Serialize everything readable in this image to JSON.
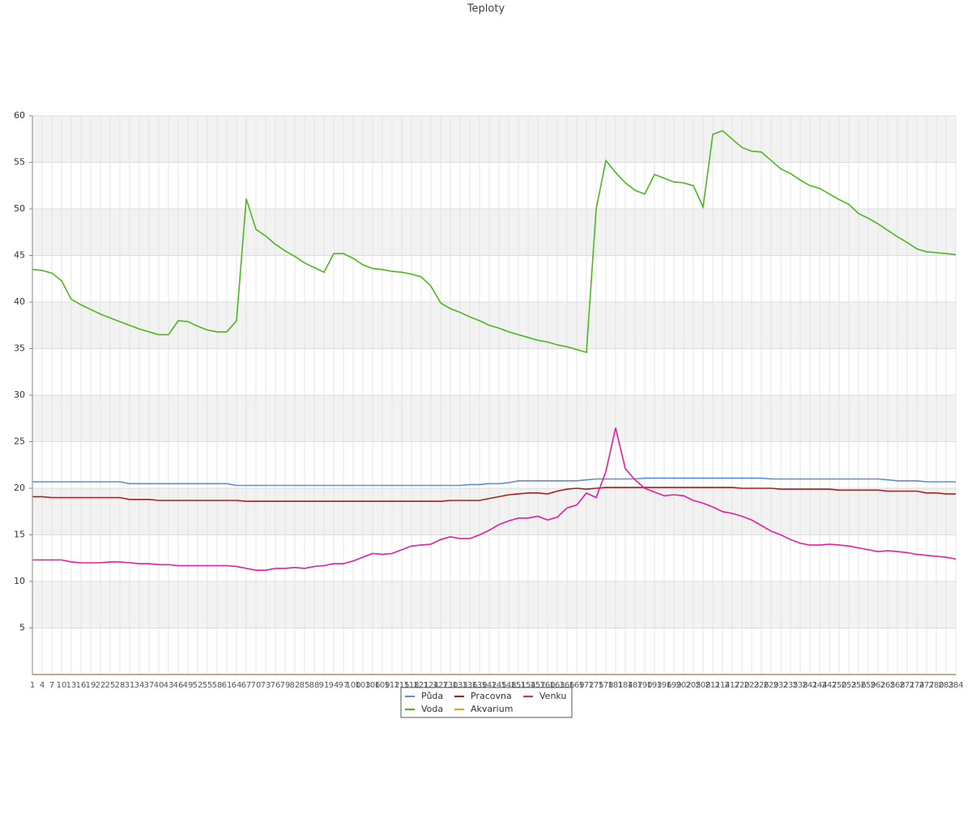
{
  "chart_data": {
    "type": "line",
    "title": "Teploty",
    "categories": [
      "1",
      "4",
      "7",
      "10",
      "13",
      "16",
      "19",
      "22",
      "25",
      "28",
      "31",
      "34",
      "37",
      "40",
      "43",
      "46",
      "49",
      "52",
      "55",
      "58",
      "61",
      "64",
      "67",
      "70",
      "73",
      "76",
      "79",
      "82",
      "85",
      "88",
      "91",
      "94",
      "97",
      "100",
      "103",
      "106",
      "109",
      "112",
      "115",
      "118",
      "121",
      "124",
      "127",
      "130",
      "133",
      "136",
      "139",
      "142",
      "145",
      "148",
      "151",
      "154",
      "157",
      "160",
      "163",
      "166",
      "169",
      "172",
      "175",
      "178",
      "181",
      "184",
      "187",
      "190",
      "193",
      "196",
      "199",
      "202",
      "205",
      "208",
      "211",
      "214",
      "217",
      "220",
      "223",
      "226",
      "229",
      "232",
      "235",
      "238",
      "241",
      "244",
      "247",
      "250",
      "253",
      "256",
      "259",
      "262",
      "265",
      "268",
      "271",
      "274",
      "277",
      "280",
      "283",
      "284"
    ],
    "series": [
      {
        "name": "Půda",
        "color": "#5a8fd8",
        "values": [
          20.7,
          20.7,
          20.7,
          20.7,
          20.7,
          20.7,
          20.7,
          20.7,
          20.7,
          20.7,
          20.5,
          20.5,
          20.5,
          20.5,
          20.5,
          20.5,
          20.5,
          20.5,
          20.5,
          20.5,
          20.5,
          20.3,
          20.3,
          20.3,
          20.3,
          20.3,
          20.3,
          20.3,
          20.3,
          20.3,
          20.3,
          20.3,
          20.3,
          20.3,
          20.3,
          20.3,
          20.3,
          20.3,
          20.3,
          20.3,
          20.3,
          20.3,
          20.3,
          20.3,
          20.3,
          20.4,
          20.4,
          20.5,
          20.5,
          20.6,
          20.8,
          20.8,
          20.8,
          20.8,
          20.8,
          20.8,
          20.8,
          20.9,
          21.0,
          21.0,
          21.0,
          21.0,
          21.0,
          21.1,
          21.1,
          21.1,
          21.1,
          21.1,
          21.1,
          21.1,
          21.1,
          21.1,
          21.1,
          21.1,
          21.1,
          21.1,
          21.0,
          21.0,
          21.0,
          21.0,
          21.0,
          21.0,
          21.0,
          21.0,
          21.0,
          21.0,
          21.0,
          21.0,
          20.9,
          20.8,
          20.8,
          20.8,
          20.7,
          20.7,
          20.7,
          20.7
        ]
      },
      {
        "name": "Voda",
        "color": "#4cb81c",
        "values": [
          43.5,
          43.4,
          43.1,
          42.3,
          40.3,
          39.7,
          39.2,
          38.7,
          38.3,
          37.9,
          37.5,
          37.1,
          36.8,
          36.5,
          36.5,
          38.0,
          37.9,
          37.4,
          37.0,
          36.8,
          36.8,
          38.0,
          51.1,
          47.8,
          47.1,
          46.2,
          45.5,
          44.9,
          44.2,
          43.7,
          43.2,
          45.2,
          45.2,
          44.7,
          44.0,
          43.6,
          43.5,
          43.3,
          43.2,
          43.0,
          42.7,
          41.7,
          39.9,
          39.3,
          38.9,
          38.4,
          38.0,
          37.5,
          37.2,
          36.8,
          36.5,
          36.2,
          35.9,
          35.7,
          35.4,
          35.2,
          34.9,
          34.6,
          50,
          55.2,
          53.9,
          52.8,
          52.0,
          51.6,
          53.7,
          53.3,
          52.9,
          52.8,
          52.5,
          50.2,
          58.0,
          58.4,
          57.5,
          56.6,
          56.2,
          56.1,
          55.2,
          54.3,
          53.8,
          53.1,
          52.5,
          52.2,
          51.6,
          51.0,
          50.5,
          49.5,
          49.0,
          48.4,
          47.7,
          47.0,
          46.4,
          45.7,
          45.4,
          45.3,
          45.2,
          45.1
        ]
      },
      {
        "name": "Pracovna",
        "color": "#b01c1c",
        "values": [
          19.1,
          19.1,
          19.0,
          19.0,
          19.0,
          19.0,
          19.0,
          19.0,
          19.0,
          19.0,
          18.8,
          18.8,
          18.8,
          18.7,
          18.7,
          18.7,
          18.7,
          18.7,
          18.7,
          18.7,
          18.7,
          18.7,
          18.6,
          18.6,
          18.6,
          18.6,
          18.6,
          18.6,
          18.6,
          18.6,
          18.6,
          18.6,
          18.6,
          18.6,
          18.6,
          18.6,
          18.6,
          18.6,
          18.6,
          18.6,
          18.6,
          18.6,
          18.6,
          18.7,
          18.7,
          18.7,
          18.7,
          18.9,
          19.1,
          19.3,
          19.4,
          19.5,
          19.5,
          19.4,
          19.7,
          19.9,
          20.0,
          19.9,
          20.0,
          20.1,
          20.1,
          20.1,
          20.1,
          20.1,
          20.1,
          20.1,
          20.1,
          20.1,
          20.1,
          20.1,
          20.1,
          20.1,
          20.1,
          20.0,
          20.0,
          20.0,
          20.0,
          19.9,
          19.9,
          19.9,
          19.9,
          19.9,
          19.9,
          19.8,
          19.8,
          19.8,
          19.8,
          19.8,
          19.7,
          19.7,
          19.7,
          19.7,
          19.5,
          19.5,
          19.4,
          19.4
        ]
      },
      {
        "name": "Akvarium",
        "color": "#e8a317",
        "values": [
          0,
          0,
          0,
          0,
          0,
          0,
          0,
          0,
          0,
          0,
          0,
          0,
          0,
          0,
          0,
          0,
          0,
          0,
          0,
          0,
          0,
          0,
          0,
          0,
          0,
          0,
          0,
          0,
          0,
          0,
          0,
          0,
          0,
          0,
          0,
          0,
          0,
          0,
          0,
          0,
          0,
          0,
          0,
          0,
          0,
          0,
          0,
          0,
          0,
          0,
          0,
          0,
          0,
          0,
          0,
          0,
          0,
          0,
          0,
          0,
          0,
          0,
          0,
          0,
          0,
          0,
          0,
          0,
          0,
          0,
          0,
          0,
          0,
          0,
          0,
          0,
          0,
          0,
          0,
          0,
          0,
          0,
          0,
          0,
          0,
          0,
          0,
          0,
          0,
          0,
          0,
          0,
          0,
          0,
          0,
          0
        ]
      },
      {
        "name": "Venku",
        "color": "#e81c9c",
        "values": [
          12.3,
          12.3,
          12.3,
          12.3,
          12.1,
          12.0,
          12.0,
          12.0,
          12.1,
          12.1,
          12.0,
          11.9,
          11.9,
          11.8,
          11.8,
          11.7,
          11.7,
          11.7,
          11.7,
          11.7,
          11.7,
          11.6,
          11.4,
          11.2,
          11.2,
          11.4,
          11.4,
          11.5,
          11.4,
          11.6,
          11.7,
          11.9,
          11.9,
          12.2,
          12.6,
          13.0,
          12.9,
          13.0,
          13.4,
          13.8,
          13.9,
          14.0,
          14.5,
          14.8,
          14.6,
          14.6,
          15.0,
          15.5,
          16.1,
          16.5,
          16.8,
          16.8,
          17.0,
          16.6,
          16.9,
          17.9,
          18.2,
          19.5,
          19.0,
          21.8,
          26.5,
          22.1,
          20.9,
          20.0,
          19.6,
          19.2,
          19.3,
          19.2,
          18.7,
          18.4,
          18.0,
          17.5,
          17.3,
          17.0,
          16.6,
          16.0,
          15.4,
          15.0,
          14.5,
          14.1,
          13.9,
          13.9,
          14.0,
          13.9,
          13.8,
          13.6,
          13.4,
          13.2,
          13.3,
          13.2,
          13.1,
          12.9,
          12.8,
          12.7,
          12.6,
          12.4
        ]
      }
    ],
    "ylim": [
      0,
      60
    ],
    "yticks": [
      5,
      10,
      15,
      20,
      25,
      30,
      35,
      40,
      45,
      50,
      55,
      60
    ],
    "grid": true,
    "legend": "bottom"
  }
}
